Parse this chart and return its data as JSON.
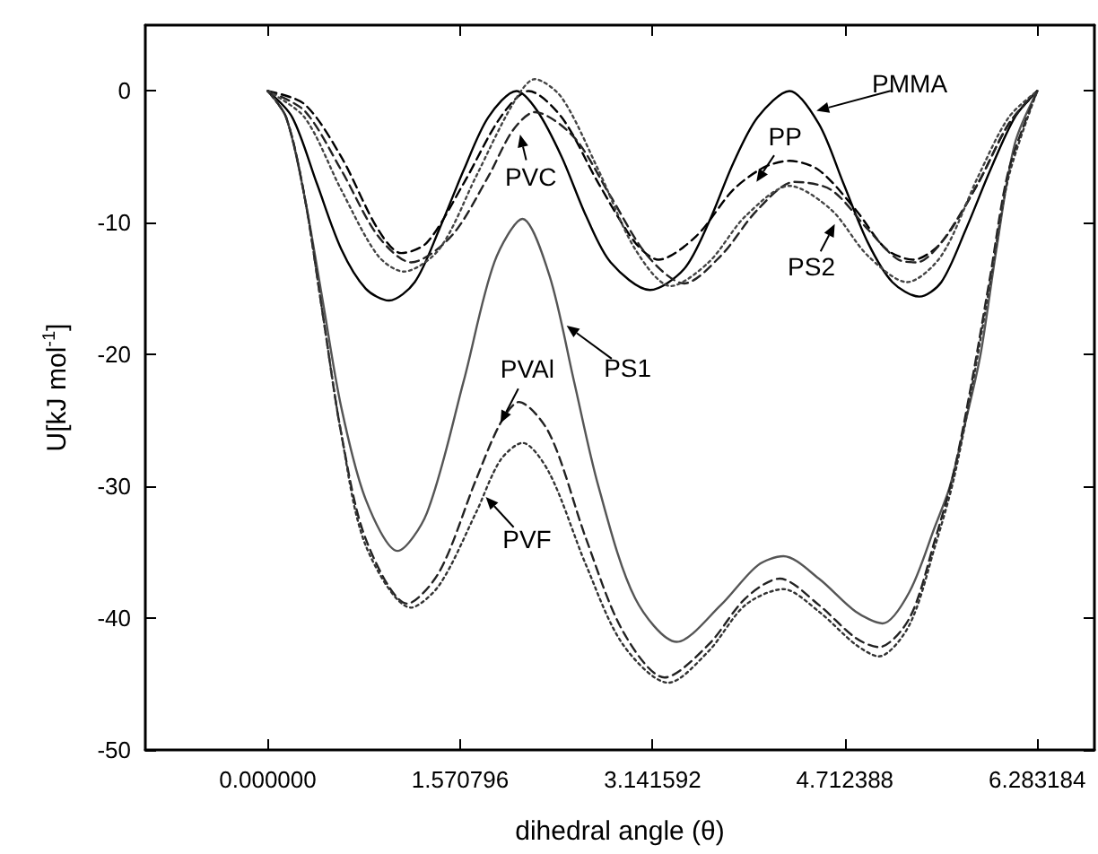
{
  "chart_data": {
    "type": "line",
    "xlabel": "dihedral angle (θ)",
    "ylabel": "U[kJ mol$^{-1}$]",
    "xlim": [
      -1,
      6.75
    ],
    "xticks": [
      {
        "value": 0,
        "label": "0.000000"
      },
      1.570796,
      3.141592,
      4.712388,
      6.283184
    ],
    "ylim": [
      -50,
      5
    ],
    "yticks": [
      -50,
      -40,
      -30,
      -20,
      -10,
      0
    ],
    "grid": false,
    "marker": "none",
    "series": [
      {
        "color": "#000000",
        "line_style": "solid",
        "x": [
          0,
          0.2,
          0.4,
          0.6,
          0.8,
          0.99,
          1.2,
          1.4,
          1.6,
          1.8,
          2.03,
          2.2,
          2.4,
          2.6,
          2.8,
          3.12,
          3.4,
          3.6,
          3.8,
          4.0,
          4.26,
          4.5,
          4.7,
          4.9,
          5.1,
          5.32,
          5.5,
          5.7,
          5.9,
          6.1,
          6.283
        ],
        "values": [
          0,
          -2,
          -7,
          -12,
          -15,
          -15.9,
          -14.5,
          -10.5,
          -6,
          -2,
          0,
          -1.5,
          -5,
          -9.5,
          -13,
          -15.1,
          -13.5,
          -10,
          -5.5,
          -2,
          0,
          -2.5,
          -7,
          -11.5,
          -14.5,
          -15.6,
          -14.5,
          -10.5,
          -6,
          -2,
          0
        ]
      },
      {
        "color": "#000000",
        "line_style": "dashed",
        "x": [
          0,
          0.3,
          0.6,
          0.9,
          1.09,
          1.3,
          1.6,
          1.9,
          2.13,
          2.4,
          2.7,
          3.0,
          3.19,
          3.5,
          3.8,
          4.05,
          4.26,
          4.5,
          4.8,
          5.05,
          5.27,
          5.5,
          5.8,
          6.05,
          6.283
        ],
        "values": [
          0,
          -1,
          -5,
          -10.5,
          -12.3,
          -11.5,
          -7,
          -2,
          0,
          -2,
          -7,
          -11.5,
          -12.8,
          -11,
          -7.5,
          -5.8,
          -5.3,
          -6,
          -9,
          -12,
          -12.8,
          -11.5,
          -7,
          -2.5,
          0
        ]
      },
      {
        "color": "#222222",
        "line_style": "dashed",
        "x": [
          0,
          0.3,
          0.6,
          0.9,
          1.17,
          1.5,
          1.8,
          2.0,
          2.18,
          2.5,
          2.8,
          3.1,
          3.4,
          3.7,
          4.0,
          4.3,
          4.6,
          4.9,
          5.15,
          5.3,
          5.5,
          5.8,
          6.05,
          6.283
        ],
        "values": [
          0,
          -1.5,
          -6,
          -11,
          -13,
          -11,
          -6.5,
          -3,
          -1.6,
          -3.5,
          -8,
          -12.5,
          -14.6,
          -12.5,
          -9,
          -6.9,
          -7.5,
          -10.5,
          -12.8,
          -13,
          -11.5,
          -7,
          -2.5,
          0
        ]
      },
      {
        "color": "#444444",
        "line_style": "dotted",
        "x": [
          0,
          0.3,
          0.6,
          0.9,
          1.11,
          1.4,
          1.7,
          2.0,
          2.18,
          2.4,
          2.7,
          3.0,
          3.29,
          3.6,
          3.9,
          4.26,
          4.6,
          4.9,
          5.22,
          5.5,
          5.8,
          6.05,
          6.283
        ],
        "values": [
          0,
          -2,
          -7.5,
          -12.5,
          -13.7,
          -12,
          -6.5,
          -1,
          0.9,
          -0.5,
          -6,
          -12,
          -14.8,
          -13,
          -9.5,
          -7.2,
          -9,
          -12.5,
          -14.5,
          -12.5,
          -6.5,
          -2,
          0
        ]
      },
      {
        "color": "#555555",
        "line_style": "solid",
        "x": [
          0,
          0.15,
          0.3,
          0.45,
          0.6,
          0.8,
          1.06,
          1.3,
          1.6,
          1.85,
          2.08,
          2.3,
          2.5,
          2.7,
          3.0,
          3.34,
          3.7,
          4.0,
          4.21,
          4.5,
          4.8,
          5.02,
          5.24,
          5.45,
          5.57,
          5.7,
          5.82,
          5.95,
          6.1,
          6.283
        ],
        "values": [
          0,
          -2,
          -8,
          -16,
          -24,
          -31,
          -34.9,
          -32,
          -22,
          -13,
          -9.7,
          -14,
          -22,
          -30,
          -38.5,
          -41.8,
          -39,
          -36,
          -35.3,
          -37,
          -39.5,
          -40.4,
          -38,
          -33,
          -30,
          -25,
          -20,
          -12,
          -4,
          0
        ]
      },
      {
        "color": "#222222",
        "line_style": "dashed",
        "x": [
          0,
          0.15,
          0.3,
          0.45,
          0.6,
          0.8,
          1.14,
          1.4,
          1.7,
          1.9,
          2.05,
          2.3,
          2.6,
          2.9,
          3.24,
          3.6,
          3.9,
          4.18,
          4.5,
          4.8,
          4.99,
          5.24,
          5.45,
          5.6,
          5.75,
          5.9,
          6.05,
          6.283
        ],
        "values": [
          0,
          -2,
          -8,
          -17,
          -26,
          -34,
          -38.9,
          -36.5,
          -29.5,
          -25.2,
          -23.6,
          -26,
          -34,
          -41,
          -44.5,
          -42,
          -38.5,
          -37,
          -39,
          -41.5,
          -42.2,
          -40,
          -34,
          -29,
          -22,
          -14,
          -6,
          0
        ]
      },
      {
        "color": "#333333",
        "line_style": "dotted",
        "x": [
          0,
          0.15,
          0.3,
          0.45,
          0.6,
          0.8,
          1.17,
          1.4,
          1.7,
          1.9,
          2.08,
          2.3,
          2.6,
          2.9,
          3.27,
          3.6,
          3.9,
          4.21,
          4.5,
          4.8,
          4.99,
          5.24,
          5.45,
          5.6,
          5.75,
          5.9,
          6.05,
          6.283
        ],
        "values": [
          0,
          -2,
          -8,
          -17,
          -26,
          -34.5,
          -39.2,
          -37.5,
          -32,
          -28,
          -26.7,
          -29,
          -36,
          -42,
          -44.9,
          -42.5,
          -39,
          -37.8,
          -39.5,
          -42,
          -42.9,
          -40.5,
          -34.5,
          -29.5,
          -22.5,
          -14.5,
          -6.5,
          0
        ]
      }
    ],
    "annotations": [
      {
        "text": "PMMA",
        "x": 4.48,
        "y": -1.5
      },
      {
        "text": "PP",
        "x": 3.99,
        "y": -6.9
      },
      {
        "text": "PVC",
        "x": 2.06,
        "y": -3.3
      },
      {
        "text": "PS2",
        "x": 4.63,
        "y": -10.1
      },
      {
        "text": "PS1",
        "x": 2.44,
        "y": -17.8
      },
      {
        "text": "PVAl",
        "x": 1.9,
        "y": -25.2
      },
      {
        "text": "PVF",
        "x": 1.78,
        "y": -30.8
      }
    ]
  }
}
